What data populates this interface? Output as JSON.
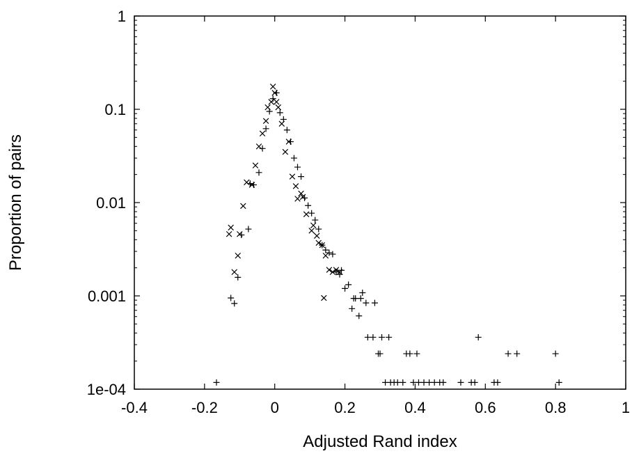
{
  "chart_data": {
    "type": "scatter",
    "xlabel": "Adjusted Rand index",
    "ylabel": "Proportion of pairs",
    "xlim": [
      -0.4,
      1
    ],
    "ylim": [
      0.0001,
      1
    ],
    "yscale": "log",
    "grid": false,
    "legend": "none",
    "x_ticks": [
      {
        "value": -0.4,
        "label": "-0.4"
      },
      {
        "value": -0.2,
        "label": "-0.2"
      },
      {
        "value": 0,
        "label": "0"
      },
      {
        "value": 0.2,
        "label": "0.2"
      },
      {
        "value": 0.4,
        "label": "0.4"
      },
      {
        "value": 0.6,
        "label": "0.6"
      },
      {
        "value": 0.8,
        "label": "0.8"
      },
      {
        "value": 1,
        "label": "1"
      }
    ],
    "y_ticks": [
      {
        "value": 1,
        "label": "1"
      },
      {
        "value": 0.1,
        "label": "0.1"
      },
      {
        "value": 0.01,
        "label": "0.01"
      },
      {
        "value": 0.001,
        "label": "0.001"
      },
      {
        "value": 0.0001,
        "label": "1e-04"
      }
    ],
    "series": [
      {
        "marker": "plus",
        "points": [
          [
            -0.166,
            0.000118
          ],
          [
            -0.125,
            0.00095
          ],
          [
            -0.115,
            0.00083
          ],
          [
            -0.105,
            0.00158
          ],
          [
            -0.095,
            0.0045
          ],
          [
            -0.075,
            0.0052
          ],
          [
            -0.07,
            0.016
          ],
          [
            -0.06,
            0.0155
          ],
          [
            -0.045,
            0.021
          ],
          [
            -0.035,
            0.038
          ],
          [
            -0.025,
            0.062
          ],
          [
            -0.015,
            0.095
          ],
          [
            -0.005,
            0.13
          ],
          [
            0.005,
            0.15
          ],
          [
            0.015,
            0.092
          ],
          [
            0.025,
            0.078
          ],
          [
            0.035,
            0.06
          ],
          [
            0.045,
            0.045
          ],
          [
            0.055,
            0.03
          ],
          [
            0.065,
            0.024
          ],
          [
            0.075,
            0.019
          ],
          [
            0.085,
            0.0112
          ],
          [
            0.095,
            0.0093
          ],
          [
            0.105,
            0.0077
          ],
          [
            0.115,
            0.0065
          ],
          [
            0.125,
            0.0052
          ],
          [
            0.135,
            0.0035
          ],
          [
            0.145,
            0.0031
          ],
          [
            0.155,
            0.0029
          ],
          [
            0.165,
            0.0028
          ],
          [
            0.175,
            0.0018
          ],
          [
            0.185,
            0.0017
          ],
          [
            0.19,
            0.00188
          ],
          [
            0.2,
            0.0012
          ],
          [
            0.21,
            0.00132
          ],
          [
            0.22,
            0.00073
          ],
          [
            0.225,
            0.00094
          ],
          [
            0.23,
            0.00094
          ],
          [
            0.24,
            0.00061
          ],
          [
            0.245,
            0.00094
          ],
          [
            0.25,
            0.00108
          ],
          [
            0.26,
            0.00084
          ],
          [
            0.265,
            0.00036
          ],
          [
            0.28,
            0.00036
          ],
          [
            0.285,
            0.00084
          ],
          [
            0.295,
            0.00024
          ],
          [
            0.3,
            0.00024
          ],
          [
            0.305,
            0.00036
          ],
          [
            0.315,
            0.000118
          ],
          [
            0.325,
            0.00036
          ],
          [
            0.33,
            0.000118
          ],
          [
            0.34,
            0.000118
          ],
          [
            0.35,
            0.000118
          ],
          [
            0.365,
            0.000118
          ],
          [
            0.375,
            0.00024
          ],
          [
            0.385,
            0.00024
          ],
          [
            0.395,
            0.000118
          ],
          [
            0.405,
            0.00024
          ],
          [
            0.41,
            0.000118
          ],
          [
            0.425,
            0.000118
          ],
          [
            0.44,
            0.000118
          ],
          [
            0.455,
            0.000118
          ],
          [
            0.47,
            0.000118
          ],
          [
            0.48,
            0.000118
          ],
          [
            0.53,
            0.000118
          ],
          [
            0.56,
            0.000118
          ],
          [
            0.57,
            0.000118
          ],
          [
            0.58,
            0.00036
          ],
          [
            0.625,
            0.000118
          ],
          [
            0.635,
            0.000118
          ],
          [
            0.665,
            0.00024
          ],
          [
            0.69,
            0.00024
          ],
          [
            0.8,
            0.00024
          ],
          [
            0.81,
            0.000118
          ]
        ]
      },
      {
        "marker": "cross",
        "points": [
          [
            -0.13,
            0.0046
          ],
          [
            -0.125,
            0.0054
          ],
          [
            -0.115,
            0.0018
          ],
          [
            -0.105,
            0.0027
          ],
          [
            -0.1,
            0.0046
          ],
          [
            -0.09,
            0.0092
          ],
          [
            -0.08,
            0.0165
          ],
          [
            -0.065,
            0.0155
          ],
          [
            -0.055,
            0.025
          ],
          [
            -0.045,
            0.04
          ],
          [
            -0.035,
            0.055
          ],
          [
            -0.025,
            0.075
          ],
          [
            -0.02,
            0.105
          ],
          [
            -0.01,
            0.12
          ],
          [
            -0.005,
            0.175
          ],
          [
            0.0,
            0.15
          ],
          [
            0.005,
            0.12
          ],
          [
            0.01,
            0.105
          ],
          [
            0.02,
            0.07
          ],
          [
            0.03,
            0.035
          ],
          [
            0.04,
            0.045
          ],
          [
            0.05,
            0.019
          ],
          [
            0.06,
            0.015
          ],
          [
            0.065,
            0.011
          ],
          [
            0.075,
            0.0125
          ],
          [
            0.08,
            0.0115
          ],
          [
            0.09,
            0.0075
          ],
          [
            0.105,
            0.005
          ],
          [
            0.11,
            0.0057
          ],
          [
            0.12,
            0.0044
          ],
          [
            0.125,
            0.0037
          ],
          [
            0.135,
            0.0035
          ],
          [
            0.14,
            0.00095
          ],
          [
            0.145,
            0.0027
          ],
          [
            0.155,
            0.0019
          ],
          [
            0.165,
            0.0018
          ],
          [
            0.175,
            0.0019
          ],
          [
            0.185,
            0.0018
          ]
        ]
      }
    ]
  }
}
